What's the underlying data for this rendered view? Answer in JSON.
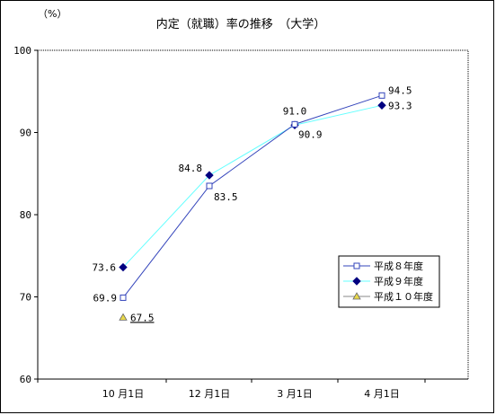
{
  "chart_data": {
    "type": "line",
    "title": "内定（就職）率の推移　（大学）",
    "unit_label": "（%）",
    "categories": [
      "10 月1日",
      "12 月1日",
      "3 月1日",
      "4 月1日"
    ],
    "ylim": [
      60,
      100
    ],
    "yticks": [
      "60",
      "70",
      "80",
      "90",
      "100"
    ],
    "grid": false,
    "legend_position": "right",
    "series": [
      {
        "name": "平成８年度",
        "values": [
          69.9,
          83.5,
          91.0,
          94.5
        ],
        "labels": [
          "69.9",
          "83.5",
          "91.0",
          "94.5"
        ],
        "color": "#3344bb",
        "marker": "square"
      },
      {
        "name": "平成９年度",
        "values": [
          73.6,
          84.8,
          90.9,
          93.3
        ],
        "labels": [
          "73.6",
          "84.8",
          "90.9",
          "93.3"
        ],
        "color": "#66ffff",
        "marker_color": "#000080",
        "marker": "diamond"
      },
      {
        "name": "平成１０年度",
        "values": [
          67.5,
          null,
          null,
          null
        ],
        "labels": [
          "67.5",
          "",
          "",
          ""
        ],
        "color": "#888888",
        "marker_color": "#e8d84a",
        "marker": "triangle"
      }
    ]
  }
}
